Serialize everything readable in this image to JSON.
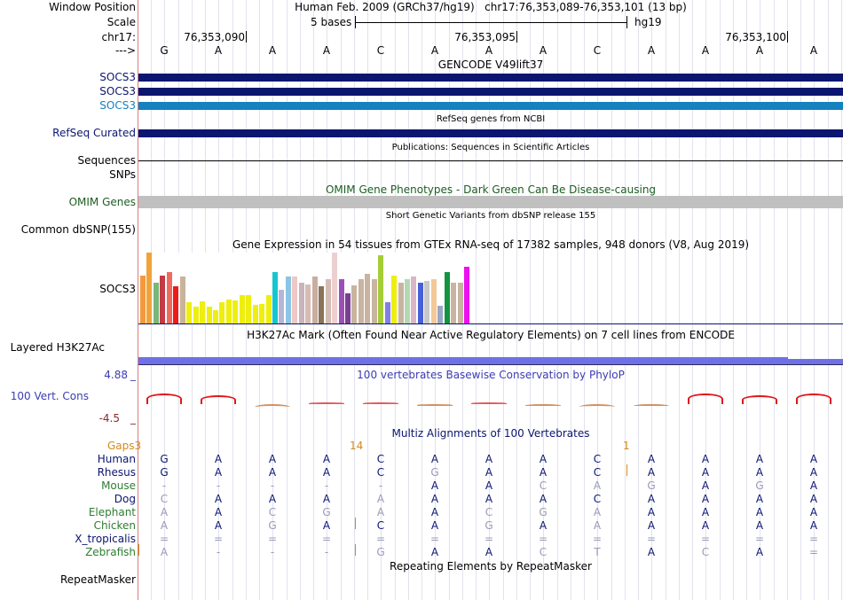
{
  "positionRow": {
    "label": "Window Position",
    "text": "Human Feb. 2009 (GRCh37/hg19)   chr17:76,353,089-76,353,101 (13 bp)"
  },
  "scaleRow": {
    "label": "Scale",
    "size": "5 bases",
    "assembly": "hg19"
  },
  "chromRow": {
    "label": "chr17:",
    "ticks": [
      "76,353,090",
      "76,353,095",
      "76,353,100"
    ]
  },
  "seqRow": {
    "label": "--->",
    "bases": [
      "G",
      "A",
      "A",
      "A",
      "C",
      "A",
      "A",
      "A",
      "C",
      "A",
      "A",
      "A",
      "A"
    ]
  },
  "gencode": {
    "title": "GENCODE V49lift37",
    "transcripts": [
      {
        "name": "SOCS3",
        "color": "#0b1670"
      },
      {
        "name": "SOCS3",
        "color": "#0b1670"
      },
      {
        "name": "SOCS3",
        "color": "#1581be"
      }
    ]
  },
  "refseq": {
    "title": "RefSeq genes from NCBI",
    "label": "RefSeq Curated",
    "color": "#0b1670"
  },
  "publications": {
    "title": "Publications: Sequences in Scientific Articles",
    "label": "Sequences"
  },
  "snps": {
    "label": "SNPs"
  },
  "omim": {
    "title": "OMIM Gene Phenotypes - Dark Green Can Be Disease-causing",
    "label": "OMIM Genes"
  },
  "dbsnp": {
    "title": "Short Genetic Variants from dbSNP release 155",
    "label": "Common dbSNP(155)"
  },
  "gtex": {
    "title": "Gene Expression in 54 tissues from GTEx RNA-seq of 17382 samples, 948 donors (V8, Aug 2019)",
    "label": "SOCS3",
    "max": 1.0,
    "bars": [
      {
        "v": 0.68,
        "c": "#f39a3d"
      },
      {
        "v": 1.0,
        "c": "#f0a33a"
      },
      {
        "v": 0.58,
        "c": "#7ab67a"
      },
      {
        "v": 0.68,
        "c": "#c33b45"
      },
      {
        "v": 0.72,
        "c": "#ef6a5e"
      },
      {
        "v": 0.52,
        "c": "#ef1a1a"
      },
      {
        "v": 0.66,
        "c": "#c8b39b"
      },
      {
        "v": 0.3,
        "c": "#eeee10"
      },
      {
        "v": 0.24,
        "c": "#eeee10"
      },
      {
        "v": 0.31,
        "c": "#eeee10"
      },
      {
        "v": 0.24,
        "c": "#eeee10"
      },
      {
        "v": 0.19,
        "c": "#eeee10"
      },
      {
        "v": 0.3,
        "c": "#eeee10"
      },
      {
        "v": 0.34,
        "c": "#eeee10"
      },
      {
        "v": 0.32,
        "c": "#eeee10"
      },
      {
        "v": 0.4,
        "c": "#eeee10"
      },
      {
        "v": 0.4,
        "c": "#eeee10"
      },
      {
        "v": 0.26,
        "c": "#eeee10"
      },
      {
        "v": 0.28,
        "c": "#eeee10"
      },
      {
        "v": 0.4,
        "c": "#eeee10"
      },
      {
        "v": 0.72,
        "c": "#15c6cf"
      },
      {
        "v": 0.48,
        "c": "#b5b5d6"
      },
      {
        "v": 0.66,
        "c": "#8cc4e5"
      },
      {
        "v": 0.66,
        "c": "#edc8c5"
      },
      {
        "v": 0.58,
        "c": "#c8b4ba"
      },
      {
        "v": 0.55,
        "c": "#d6bcb6"
      },
      {
        "v": 0.66,
        "c": "#c9ad9e"
      },
      {
        "v": 0.52,
        "c": "#8a7358"
      },
      {
        "v": 0.62,
        "c": "#d3bcb2"
      },
      {
        "v": 1.0,
        "c": "#edcfd0"
      },
      {
        "v": 0.62,
        "c": "#9b50b6"
      },
      {
        "v": 0.42,
        "c": "#7a4090"
      },
      {
        "v": 0.54,
        "c": "#c8b4a0"
      },
      {
        "v": 0.62,
        "c": "#c8b4a0"
      },
      {
        "v": 0.7,
        "c": "#c8b4a0"
      },
      {
        "v": 0.62,
        "c": "#c8b4a0"
      },
      {
        "v": 0.96,
        "c": "#a4cd38"
      },
      {
        "v": 0.3,
        "c": "#7f7fe8"
      },
      {
        "v": 0.68,
        "c": "#eeee10"
      },
      {
        "v": 0.58,
        "c": "#c8b4a0"
      },
      {
        "v": 0.62,
        "c": "#b4d8b4"
      },
      {
        "v": 0.66,
        "c": "#dab5c8"
      },
      {
        "v": 0.58,
        "c": "#4560d8"
      },
      {
        "v": 0.6,
        "c": "#c8c8c8"
      },
      {
        "v": 0.62,
        "c": "#f4c897"
      },
      {
        "v": 0.25,
        "c": "#9aa8c8"
      },
      {
        "v": 0.72,
        "c": "#149440"
      },
      {
        "v": 0.58,
        "c": "#c8b4a0"
      },
      {
        "v": 0.58,
        "c": "#c8b4a0"
      },
      {
        "v": 0.8,
        "c": "#ee10ee"
      }
    ]
  },
  "h3k27ac": {
    "title": "H3K27Ac Mark (Often Found Near Active Regulatory Elements) on 7 cell lines from ENCODE",
    "label": "Layered H3K27Ac"
  },
  "phylop": {
    "title": "100 vertebrates Basewise Conservation by PhyloP",
    "label": "100 Vert. Cons",
    "ymax": "4.88",
    "ymin": "-4.5",
    "values": [
      3.6,
      3.2,
      -2.2,
      0.4,
      0.2,
      -0.4,
      0.4,
      -1.0,
      -1.8,
      -1.2,
      3.6,
      3.0,
      3.6
    ]
  },
  "multiz": {
    "title": "Multiz Alignments of 100 Vertebrates",
    "gapsLabel": "Gaps3",
    "gapCounts": [
      "14",
      "1"
    ],
    "species": [
      {
        "name": "Human",
        "color": "#0b1670",
        "row": "GAAACAAACAAAA"
      },
      {
        "name": "Rhesus",
        "color": "#0b1670",
        "row": "GAAACGAACAAAA"
      },
      {
        "name": "Mouse",
        "color": "#2e7d32",
        "row": "-----AACAGAGA"
      },
      {
        "name": "Dog",
        "color": "#0b1670",
        "row": "CAAAAAAACAAAA"
      },
      {
        "name": "Elephant",
        "color": "#2e7d32",
        "row": "AACGAACGAAAAA"
      },
      {
        "name": "Chicken",
        "color": "#2e7d32",
        "row": "AAGACAGAAAAAA"
      },
      {
        "name": "X_tropicalis",
        "color": "#0b1670",
        "row": "============="
      },
      {
        "name": "Zebrafish",
        "color": "#2e7d32",
        "row": "A---GAACTACA="
      }
    ]
  },
  "repeatmasker": {
    "title": "Repeating Elements by RepeatMasker",
    "label": "RepeatMasker"
  }
}
